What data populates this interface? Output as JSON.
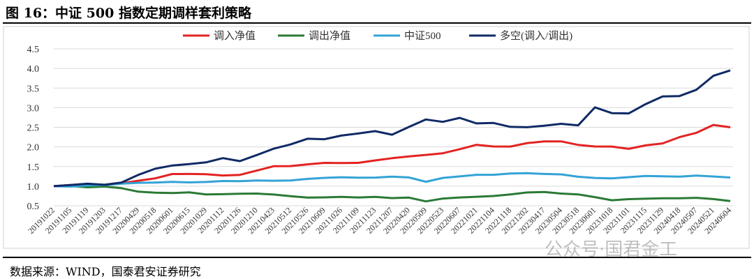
{
  "title": "图 16：中证 500 指数定期调样套利策略",
  "source": "数据来源：WIND，国泰君安证券研究",
  "watermark": "公众号·国君金工",
  "chart_data": {
    "type": "line",
    "title": "",
    "xlabel": "",
    "ylabel": "",
    "ylim": [
      0.5,
      4.5
    ],
    "yticks": [
      0.5,
      1.0,
      1.5,
      2.0,
      2.5,
      3.0,
      3.5,
      4.0,
      4.5
    ],
    "grid": "horizontal",
    "legend": "top-center",
    "categories": [
      "20191022",
      "20191105",
      "20191119",
      "20191203",
      "20191217",
      "20200429",
      "20200518",
      "20200601",
      "20200615",
      "20201029",
      "20201112",
      "20201126",
      "20201210",
      "20210423",
      "20210512",
      "20210526",
      "20210609",
      "20211026",
      "20211109",
      "20211123",
      "20211207",
      "20220420",
      "20220509",
      "20220523",
      "20220607",
      "20221021",
      "20221104",
      "20221118",
      "20221202",
      "20230417",
      "20230504",
      "20230518",
      "20230601",
      "20231018",
      "20231101",
      "20231115",
      "20231129",
      "20240418",
      "20240507",
      "20240521",
      "20240604"
    ],
    "series": [
      {
        "name": "调入净值",
        "color": "#e32322",
        "values": [
          1.0,
          1.02,
          1.05,
          1.03,
          1.08,
          1.15,
          1.2,
          1.3,
          1.3,
          1.3,
          1.28,
          1.3,
          1.4,
          1.5,
          1.5,
          1.55,
          1.6,
          1.6,
          1.6,
          1.65,
          1.7,
          1.75,
          1.8,
          1.85,
          1.95,
          2.05,
          2.0,
          2.0,
          2.1,
          2.15,
          2.15,
          2.05,
          2.0,
          2.0,
          1.95,
          2.05,
          2.1,
          2.25,
          2.35,
          2.55,
          2.5
        ]
      },
      {
        "name": "调出净值",
        "color": "#2a7a35",
        "values": [
          1.0,
          1.0,
          0.98,
          1.0,
          0.95,
          0.85,
          0.82,
          0.82,
          0.85,
          0.8,
          0.8,
          0.8,
          0.8,
          0.78,
          0.75,
          0.72,
          0.72,
          0.72,
          0.7,
          0.72,
          0.7,
          0.72,
          0.62,
          0.68,
          0.7,
          0.72,
          0.75,
          0.8,
          0.85,
          0.85,
          0.8,
          0.78,
          0.72,
          0.65,
          0.68,
          0.68,
          0.68,
          0.68,
          0.7,
          0.68,
          0.62
        ]
      },
      {
        "name": "中证500",
        "color": "#33a3d6",
        "values": [
          1.0,
          1.0,
          1.02,
          1.02,
          1.05,
          1.08,
          1.1,
          1.12,
          1.1,
          1.1,
          1.12,
          1.12,
          1.15,
          1.15,
          1.15,
          1.18,
          1.2,
          1.22,
          1.22,
          1.23,
          1.25,
          1.22,
          1.1,
          1.2,
          1.25,
          1.3,
          1.3,
          1.32,
          1.32,
          1.3,
          1.3,
          1.25,
          1.22,
          1.2,
          1.22,
          1.25,
          1.25,
          1.25,
          1.28,
          1.25,
          1.22
        ]
      },
      {
        "name": "多空(调入/调出)",
        "color": "#0f2a66",
        "values": [
          1.0,
          1.02,
          1.05,
          1.03,
          1.1,
          1.3,
          1.45,
          1.52,
          1.55,
          1.6,
          1.72,
          1.65,
          1.8,
          1.95,
          2.05,
          2.2,
          2.2,
          2.3,
          2.35,
          2.4,
          2.3,
          2.5,
          2.7,
          2.65,
          2.75,
          2.6,
          2.6,
          2.5,
          2.5,
          2.55,
          2.6,
          2.55,
          3.0,
          2.85,
          2.85,
          3.1,
          3.3,
          3.3,
          3.45,
          3.8,
          3.95
        ]
      }
    ]
  }
}
